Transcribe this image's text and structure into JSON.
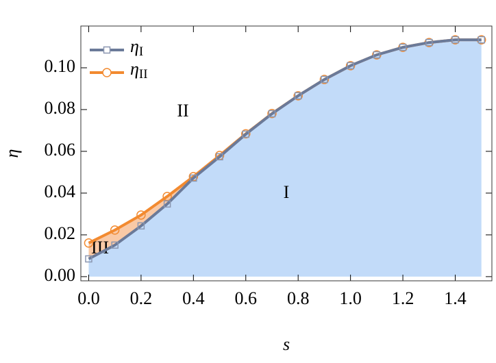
{
  "chart_data": {
    "type": "line",
    "x_label": "s",
    "y_label": "η",
    "x": [
      0,
      0.1,
      0.2,
      0.3,
      0.4,
      0.5,
      0.6,
      0.7,
      0.8,
      0.9,
      1.0,
      1.1,
      1.2,
      1.3,
      1.4,
      1.5
    ],
    "series": [
      {
        "name": "ηII",
        "color": "#f28a30",
        "marker": "circle",
        "fill": "#f9c9a6",
        "values": [
          0.0161,
          0.0223,
          0.0295,
          0.0384,
          0.0479,
          0.058,
          0.0684,
          0.0781,
          0.0866,
          0.0944,
          0.101,
          0.1062,
          0.1098,
          0.1121,
          0.1134,
          0.1134
        ]
      },
      {
        "name": "ηI",
        "color": "#6b7a99",
        "marker": "square",
        "fill": "#c2dbf9",
        "values": [
          0.0085,
          0.0151,
          0.0243,
          0.0348,
          0.0472,
          0.0574,
          0.0682,
          0.078,
          0.0866,
          0.0944,
          0.101,
          0.1062,
          0.1098,
          0.1121,
          0.1134,
          0.1134
        ]
      }
    ],
    "annotations": [
      "I",
      "II",
      "III"
    ],
    "xlim": [
      -0.03,
      1.54
    ],
    "ylim": [
      -0.002,
      0.12
    ],
    "xticks": [
      {
        "value": 0,
        "label": "0.0"
      },
      {
        "value": 0.2,
        "label": "0.2"
      },
      {
        "value": 0.4,
        "label": "0.4"
      },
      {
        "value": 0.6,
        "label": "0.6"
      },
      {
        "value": 0.8,
        "label": "0.8"
      },
      {
        "value": 1.0,
        "label": "1.0"
      },
      {
        "value": 1.2,
        "label": "1.2"
      },
      {
        "value": 1.4,
        "label": "1.4"
      }
    ],
    "yticks": [
      {
        "value": 0,
        "label": "0.00"
      },
      {
        "value": 0.02,
        "label": "0.02"
      },
      {
        "value": 0.04,
        "label": "0.04"
      },
      {
        "value": 0.06,
        "label": "0.06"
      },
      {
        "value": 0.08,
        "label": "0.08"
      },
      {
        "value": 0.1,
        "label": "0.10"
      }
    ],
    "legend": "upper left"
  }
}
